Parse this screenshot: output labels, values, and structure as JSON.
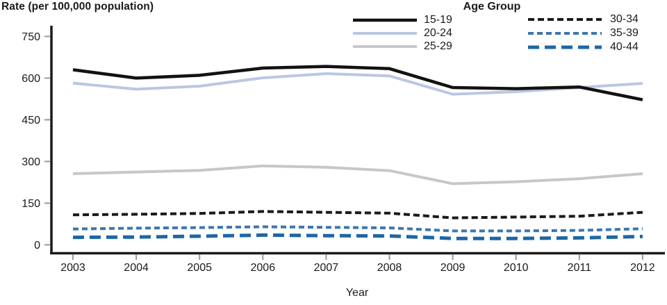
{
  "y_axis_title": "Rate (per 100,000 population)",
  "legend": {
    "title": "Age Group",
    "entries": [
      "15-19",
      "20-24",
      "25-29",
      "30-34",
      "35-39",
      "40-44"
    ]
  },
  "chart_data": {
    "type": "line",
    "title": "",
    "ylabel": "Rate (per 100,000 population)",
    "xlabel": "Year",
    "ylim": [
      0,
      750
    ],
    "yticks": [
      0,
      150,
      300,
      450,
      600,
      750
    ],
    "x": [
      2003,
      2004,
      2005,
      2006,
      2007,
      2008,
      2009,
      2010,
      2011,
      2012
    ],
    "legend_title": "Age Group",
    "legend_position": "top",
    "grid": false,
    "series": [
      {
        "name": "15-19",
        "color": "#121212",
        "dash": "",
        "width": 4.5,
        "values": [
          630,
          600,
          610,
          636,
          642,
          634,
          566,
          562,
          568,
          522
        ]
      },
      {
        "name": "20-24",
        "color": "#b9c7e3",
        "dash": "",
        "width": 4,
        "values": [
          582,
          560,
          571,
          601,
          616,
          608,
          542,
          551,
          566,
          581
        ]
      },
      {
        "name": "25-29",
        "color": "#c7c7cb",
        "dash": "",
        "width": 4,
        "values": [
          256,
          262,
          268,
          284,
          279,
          267,
          220,
          227,
          238,
          256
        ]
      },
      {
        "name": "30-34",
        "color": "#1a1a1a",
        "dash": "9 5",
        "width": 4,
        "values": [
          108,
          110,
          113,
          120,
          117,
          114,
          97,
          100,
          103,
          117
        ]
      },
      {
        "name": "35-39",
        "color": "#3d76b0",
        "dash": "8 5",
        "width": 4,
        "values": [
          57,
          60,
          62,
          65,
          63,
          61,
          50,
          50,
          52,
          58
        ]
      },
      {
        "name": "40-44",
        "color": "#1c67a6",
        "dash": "16 8",
        "width": 5,
        "values": [
          27,
          28,
          31,
          35,
          33,
          32,
          23,
          23,
          25,
          30
        ]
      }
    ]
  }
}
